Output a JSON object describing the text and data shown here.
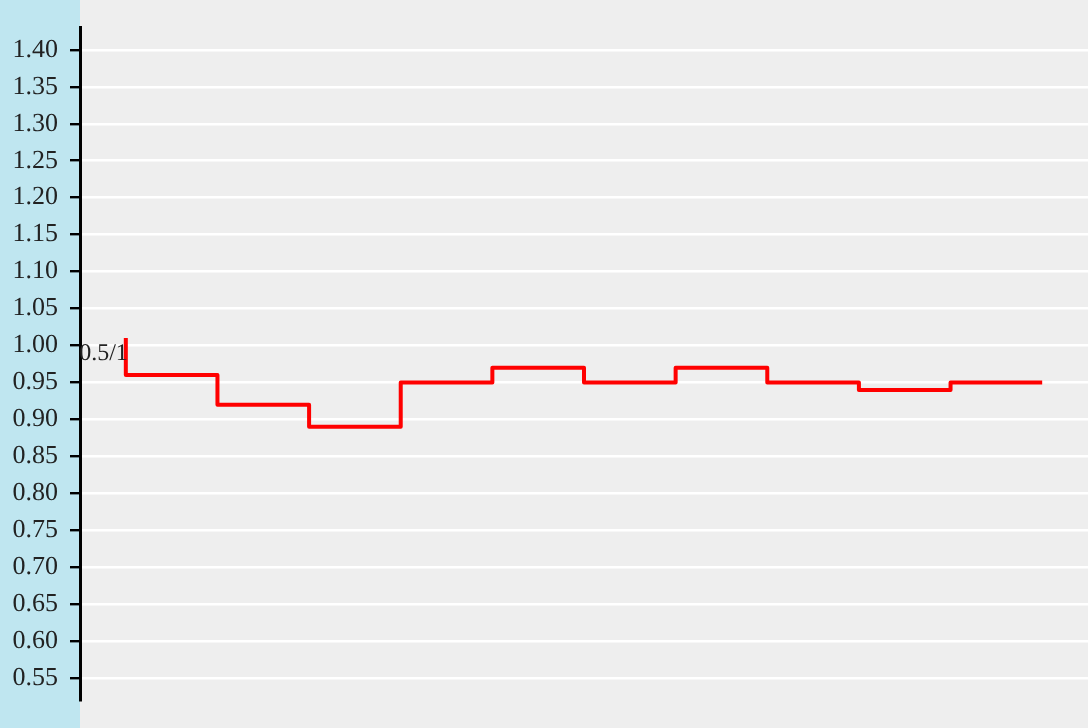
{
  "chart_data": {
    "type": "step",
    "categories": [
      null,
      null,
      null,
      null,
      null,
      null,
      null,
      null,
      null,
      null,
      null
    ],
    "series": [
      {
        "color": "#ff0000",
        "values": [
          1.01,
          0.96,
          0.92,
          0.89,
          0.95,
          0.97,
          0.95,
          0.97,
          0.95,
          0.94,
          0.95
        ]
      }
    ],
    "ylim": [
      0.52,
      1.43
    ],
    "yticks": [
      {
        "value": 0.55,
        "label": "0.55"
      },
      {
        "value": 0.6,
        "label": "0.60"
      },
      {
        "value": 0.65,
        "label": "0.65"
      },
      {
        "value": 0.7,
        "label": "0.70"
      },
      {
        "value": 0.75,
        "label": "0.75"
      },
      {
        "value": 0.8,
        "label": "0.80"
      },
      {
        "value": 0.85,
        "label": "0.85"
      },
      {
        "value": 0.9,
        "label": "0.90"
      },
      {
        "value": 0.95,
        "label": "0.95"
      },
      {
        "value": 1.0,
        "label": "1.00"
      },
      {
        "value": 1.05,
        "label": "1.05"
      },
      {
        "value": 1.1,
        "label": "1.10"
      },
      {
        "value": 1.15,
        "label": "1.15"
      },
      {
        "value": 1.2,
        "label": "1.20"
      },
      {
        "value": 1.25,
        "label": "1.25"
      },
      {
        "value": 1.3,
        "label": "1.30"
      },
      {
        "value": 1.35,
        "label": "1.35"
      },
      {
        "value": 1.4,
        "label": "1.40"
      }
    ],
    "annotations": [
      "0.5/1"
    ],
    "grid": "y",
    "tick_labels": "y",
    "legend": false,
    "marker": "none",
    "line_style": "solid"
  }
}
